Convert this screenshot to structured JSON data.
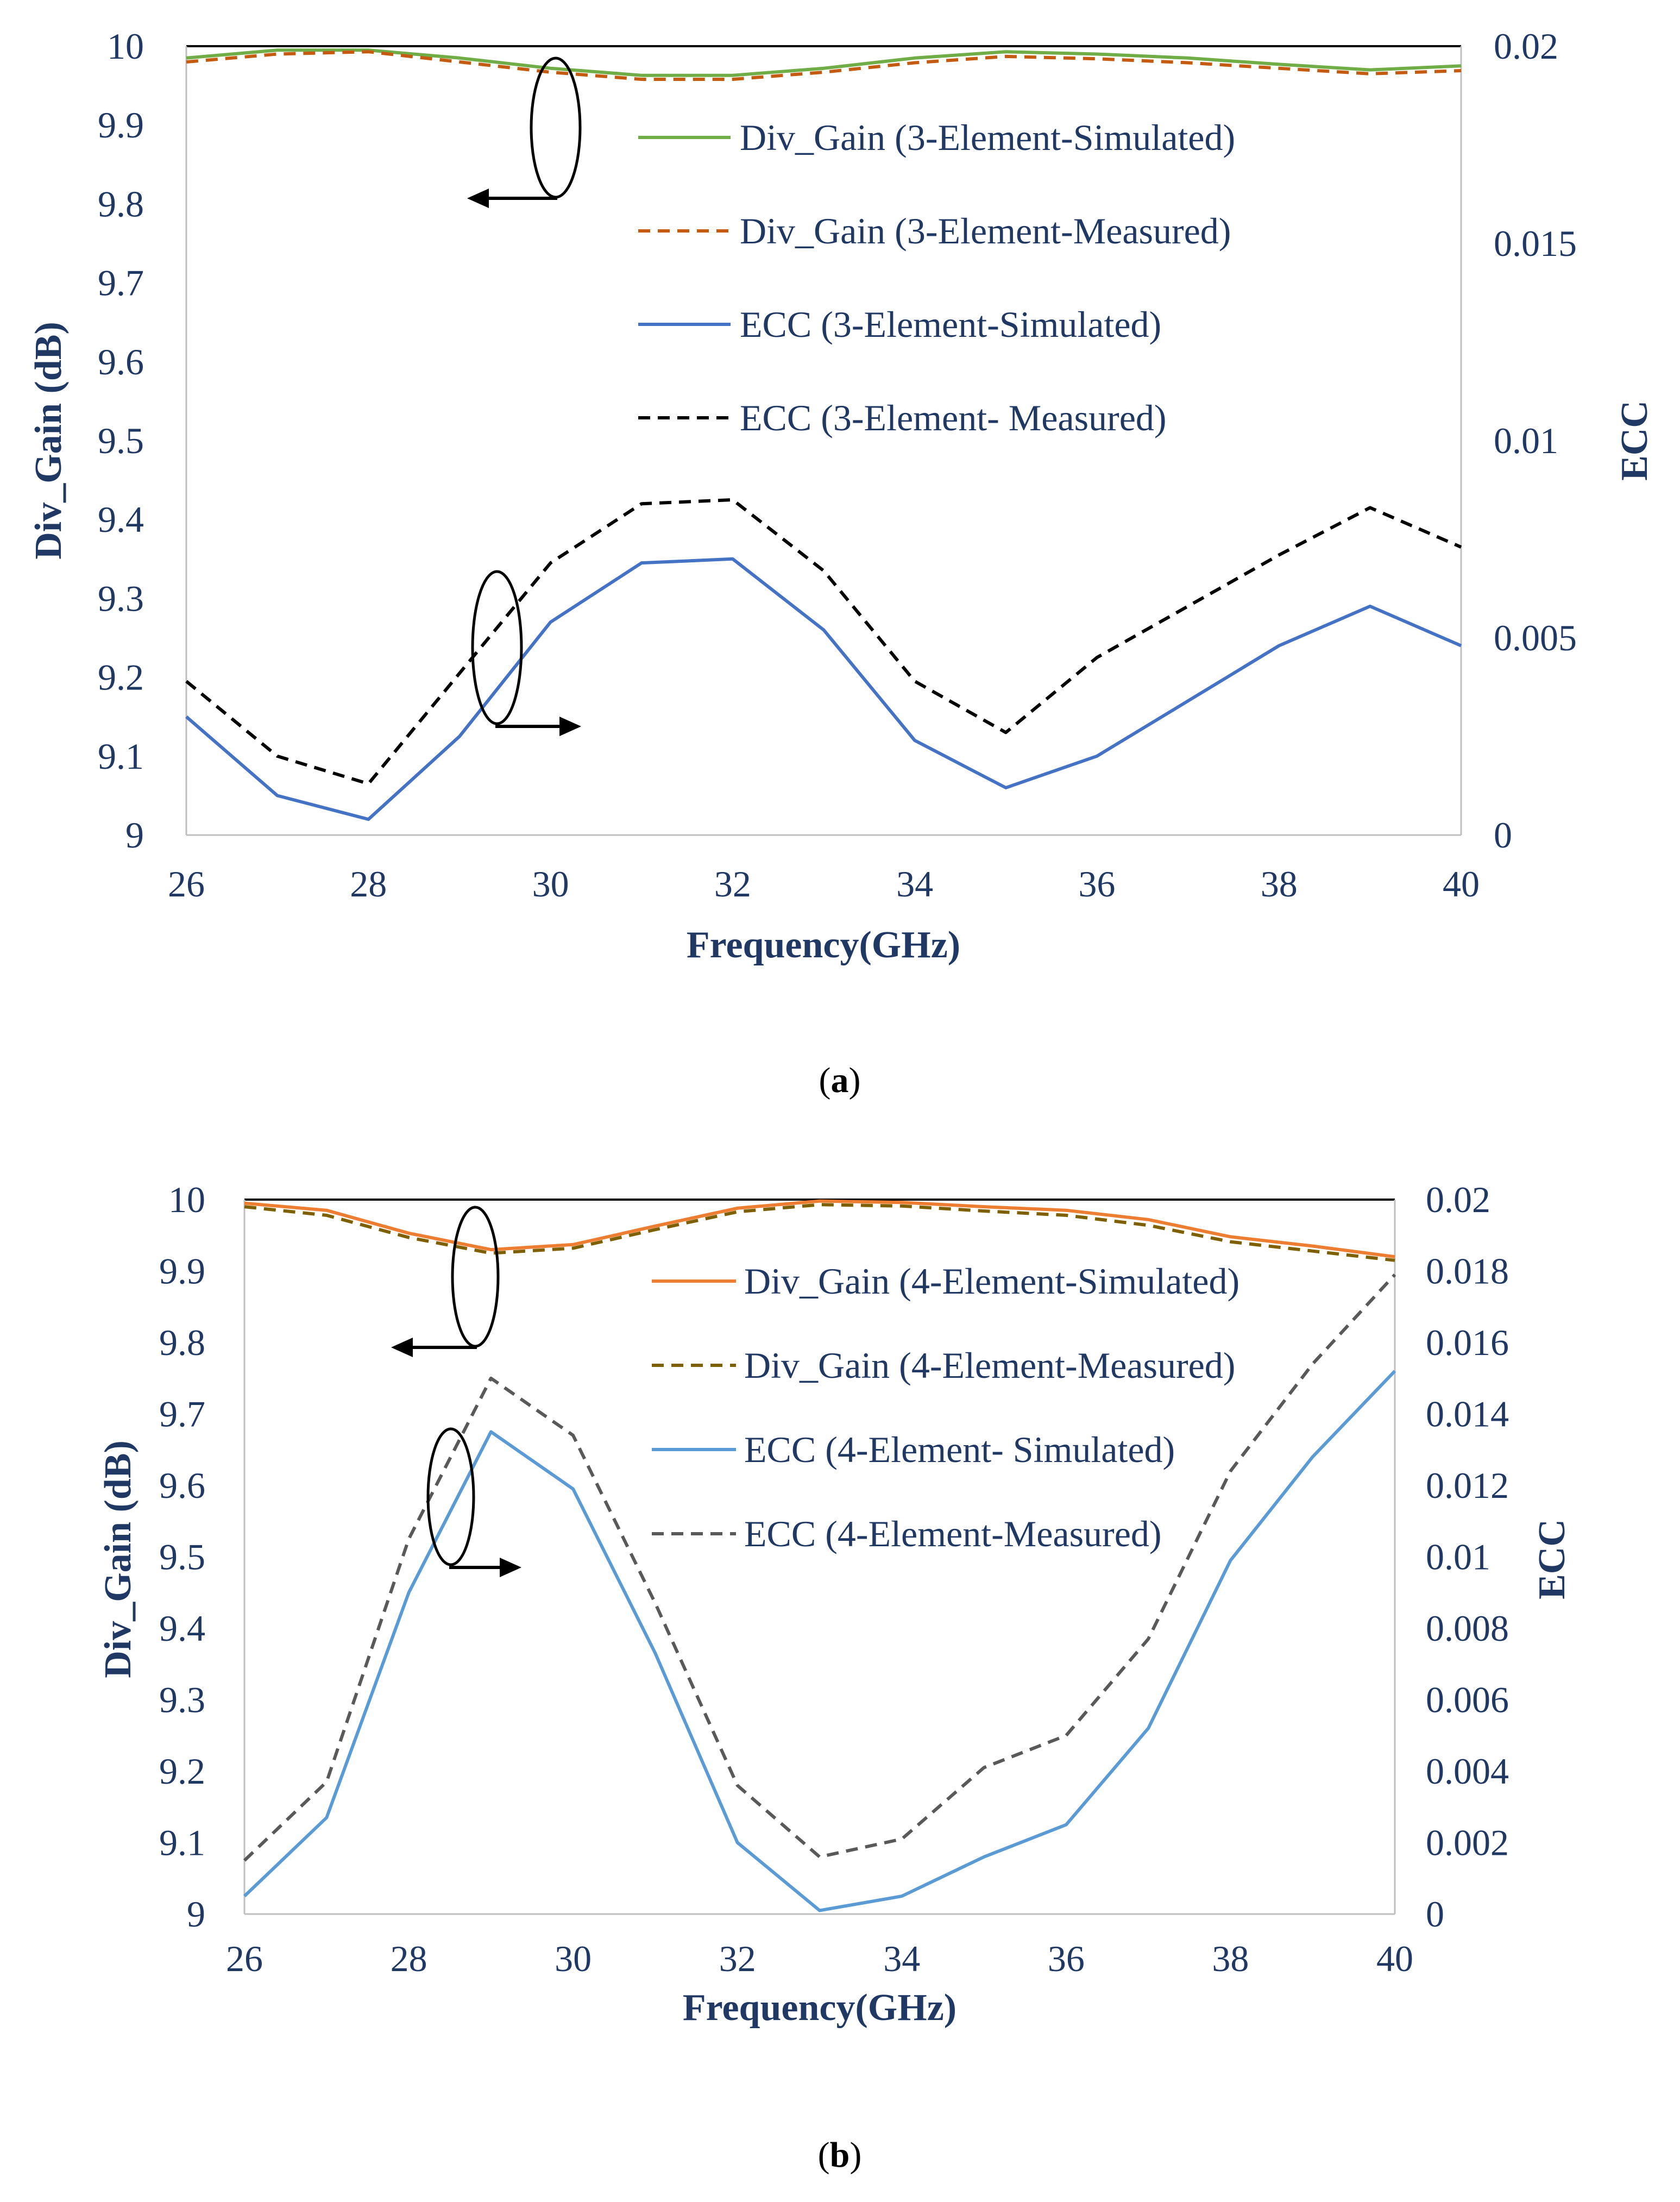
{
  "chart_data": [
    {
      "type": "line",
      "caption_letter": "a",
      "title": "",
      "xlabel": "Frequency(GHz)",
      "ylabel": "Div_Gain (dB)",
      "y2label": "ECC",
      "xlim": [
        26,
        40
      ],
      "ylim": [
        9,
        10
      ],
      "y2lim": [
        0,
        0.02
      ],
      "x_ticks": [
        "26",
        "28",
        "30",
        "32",
        "34",
        "36",
        "38",
        "40"
      ],
      "y_ticks": [
        "9",
        "9.1",
        "9.2",
        "9.3",
        "9.4",
        "9.5",
        "9.6",
        "9.7",
        "9.8",
        "9.9",
        "10"
      ],
      "y2_ticks": [
        "0",
        "0.005",
        "0.01",
        "0.015",
        "0.02"
      ],
      "legend_position": "top-right",
      "series": [
        {
          "name": "Div_Gain (3-Element-Simulated)",
          "axis": "left",
          "color": "#70ad47",
          "dash": "solid",
          "x": [
            26,
            27,
            28,
            29,
            30,
            31,
            32,
            33,
            34,
            35,
            36,
            37,
            38,
            39,
            40
          ],
          "values": [
            9.985,
            9.995,
            9.995,
            9.985,
            9.972,
            9.963,
            9.963,
            9.972,
            9.985,
            9.993,
            9.99,
            9.985,
            9.977,
            9.97,
            9.975
          ]
        },
        {
          "name": "Div_Gain (3-Element-Measured)",
          "axis": "left",
          "color": "#c55a11",
          "dash": "dashed",
          "x": [
            26,
            27,
            28,
            29,
            30,
            31,
            32,
            33,
            34,
            35,
            36,
            37,
            38,
            39,
            40
          ],
          "values": [
            9.98,
            9.99,
            9.993,
            9.98,
            9.967,
            9.958,
            9.958,
            9.967,
            9.979,
            9.987,
            9.984,
            9.979,
            9.972,
            9.965,
            9.969
          ]
        },
        {
          "name": "ECC (3-Element-Simulated)",
          "axis": "right",
          "color": "#4472c4",
          "dash": "solid",
          "x": [
            26,
            27,
            28,
            29,
            30,
            31,
            32,
            33,
            34,
            35,
            36,
            37,
            38,
            39,
            40
          ],
          "values": [
            0.003,
            0.001,
            0.0004,
            0.0025,
            0.0054,
            0.0069,
            0.007,
            0.0052,
            0.0024,
            0.0012,
            0.002,
            0.0034,
            0.0048,
            0.0058,
            0.0048
          ]
        },
        {
          "name": "ECC (3-Element- Measured)",
          "axis": "right",
          "color": "#000000",
          "dash": "dashed",
          "x": [
            26,
            27,
            28,
            29,
            30,
            31,
            32,
            33,
            34,
            35,
            36,
            37,
            38,
            39,
            40
          ],
          "values": [
            0.0039,
            0.002,
            0.0013,
            0.0041,
            0.0069,
            0.0084,
            0.0085,
            0.0067,
            0.0039,
            0.0026,
            0.0045,
            0.0058,
            0.0071,
            0.0083,
            0.0073
          ]
        }
      ]
    },
    {
      "type": "line",
      "caption_letter": "b",
      "title": "",
      "xlabel": "Frequency(GHz)",
      "ylabel": "Div_Gain (dB)",
      "y2label": "ECC",
      "xlim": [
        26,
        40
      ],
      "ylim": [
        9,
        10
      ],
      "y2lim": [
        0,
        0.02
      ],
      "x_ticks": [
        "26",
        "28",
        "30",
        "32",
        "34",
        "36",
        "38",
        "40"
      ],
      "y_ticks": [
        "9",
        "9.1",
        "9.2",
        "9.3",
        "9.4",
        "9.5",
        "9.6",
        "9.7",
        "9.8",
        "9.9",
        "10"
      ],
      "y2_ticks": [
        "0",
        "0.002",
        "0.004",
        "0.006",
        "0.008",
        "0.01",
        "0.012",
        "0.014",
        "0.016",
        "0.018",
        "0.02"
      ],
      "legend_position": "top-right",
      "series": [
        {
          "name": "Div_Gain (4-Element-Simulated)",
          "axis": "left",
          "color": "#ed7d31",
          "dash": "solid",
          "x": [
            26,
            27,
            28,
            29,
            30,
            31,
            32,
            33,
            34,
            35,
            36,
            37,
            38,
            39,
            40
          ],
          "values": [
            9.995,
            9.985,
            9.953,
            9.93,
            9.937,
            9.963,
            9.988,
            9.998,
            9.996,
            9.99,
            9.985,
            9.972,
            9.948,
            9.935,
            9.92
          ]
        },
        {
          "name": "Div_Gain (4-Element-Measured)",
          "axis": "left",
          "color": "#7f6000",
          "dash": "dashed",
          "x": [
            26,
            27,
            28,
            29,
            30,
            31,
            32,
            33,
            34,
            35,
            36,
            37,
            38,
            39,
            40
          ],
          "values": [
            9.99,
            9.978,
            9.947,
            9.925,
            9.932,
            9.958,
            9.983,
            9.993,
            9.991,
            9.984,
            9.978,
            9.964,
            9.941,
            9.928,
            9.915
          ]
        },
        {
          "name": "ECC (4-Element- Simulated)",
          "axis": "right",
          "color": "#5b9bd5",
          "dash": "solid",
          "x": [
            26,
            27,
            28,
            29,
            30,
            31,
            32,
            33,
            34,
            35,
            36,
            37,
            38,
            39,
            40
          ],
          "values": [
            0.0005,
            0.0027,
            0.009,
            0.0135,
            0.0119,
            0.0073,
            0.002,
            0.0001,
            0.0005,
            0.0016,
            0.0025,
            0.0052,
            0.0099,
            0.0128,
            0.0152
          ]
        },
        {
          "name": "ECC (4-Element-Measured)",
          "axis": "right",
          "color": "#595959",
          "dash": "dashed",
          "x": [
            26,
            27,
            28,
            29,
            30,
            31,
            32,
            33,
            34,
            35,
            36,
            37,
            38,
            39,
            40
          ],
          "values": [
            0.0015,
            0.0037,
            0.0105,
            0.015,
            0.0134,
            0.0087,
            0.0036,
            0.0016,
            0.0021,
            0.0041,
            0.005,
            0.0077,
            0.0124,
            0.0154,
            0.0179
          ]
        }
      ]
    }
  ]
}
